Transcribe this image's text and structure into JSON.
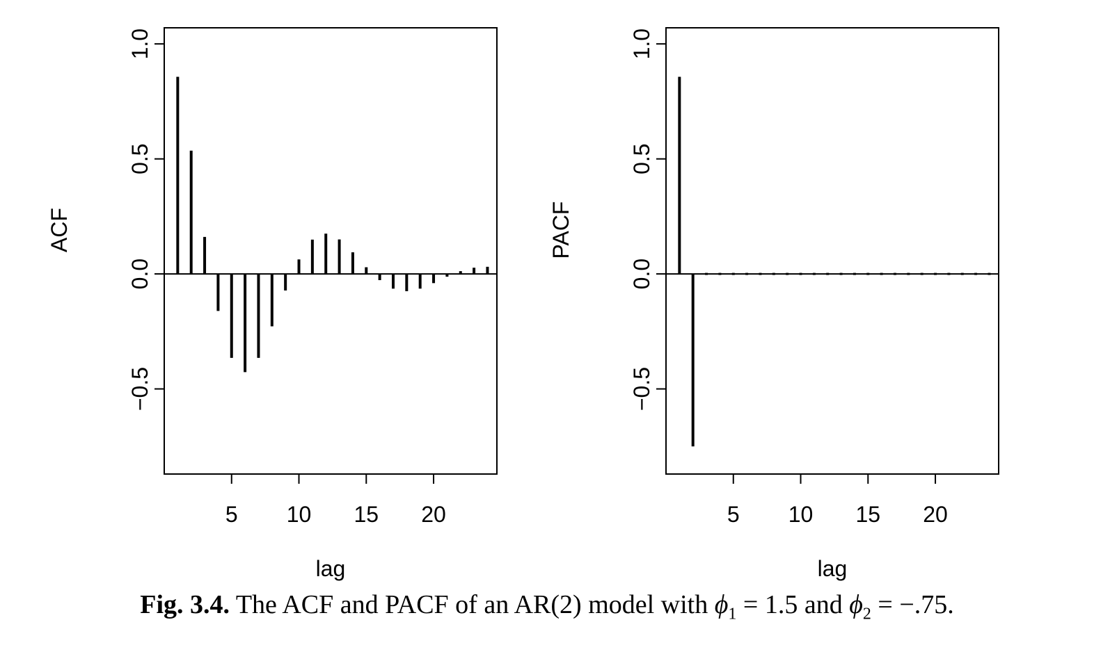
{
  "chart_data": [
    {
      "type": "bar",
      "subtype": "stem",
      "xlabel": "lag",
      "ylabel": "ACF",
      "ylim": [
        -0.87,
        1.07
      ],
      "xlim": [
        0.0,
        24.7
      ],
      "yticks": [
        -0.5,
        0.0,
        0.5,
        1.0
      ],
      "ytick_labels": [
        "−0.5",
        "0.0",
        "0.5",
        "1.0"
      ],
      "xticks": [
        5,
        10,
        15,
        20
      ],
      "xtick_labels": [
        "5",
        "10",
        "15",
        "20"
      ],
      "zero_line": true,
      "x": [
        1,
        2,
        3,
        4,
        5,
        6,
        7,
        8,
        9,
        10,
        11,
        12,
        13,
        14,
        15,
        16,
        17,
        18,
        19,
        20,
        21,
        22,
        23,
        24
      ],
      "values": [
        0.857,
        0.536,
        0.161,
        -0.161,
        -0.365,
        -0.427,
        -0.365,
        -0.228,
        -0.072,
        0.063,
        0.149,
        0.175,
        0.15,
        0.094,
        0.029,
        -0.027,
        -0.064,
        -0.075,
        -0.064,
        -0.04,
        -0.012,
        0.012,
        0.027,
        0.031
      ]
    },
    {
      "type": "bar",
      "subtype": "stem",
      "xlabel": "lag",
      "ylabel": "PACF",
      "ylim": [
        -0.87,
        1.07
      ],
      "xlim": [
        0.0,
        24.7
      ],
      "yticks": [
        -0.5,
        0.0,
        0.5,
        1.0
      ],
      "ytick_labels": [
        "−0.5",
        "0.0",
        "0.5",
        "1.0"
      ],
      "xticks": [
        5,
        10,
        15,
        20
      ],
      "xtick_labels": [
        "5",
        "10",
        "15",
        "20"
      ],
      "zero_line": true,
      "x": [
        1,
        2,
        3,
        4,
        5,
        6,
        7,
        8,
        9,
        10,
        11,
        12,
        13,
        14,
        15,
        16,
        17,
        18,
        19,
        20,
        21,
        22,
        23,
        24
      ],
      "values": [
        0.857,
        -0.75,
        0,
        0,
        0,
        0,
        0,
        0,
        0,
        0,
        0,
        0,
        0,
        0,
        0,
        0,
        0,
        0,
        0,
        0,
        0,
        0,
        0,
        0
      ]
    }
  ],
  "caption": {
    "label": "Fig. 3.4.",
    "text_before": "The ACF and PACF of an AR(2) model with",
    "phi1_symbol": "ϕ",
    "phi1_sub": "1",
    "phi1_rest": "= 1.5 and",
    "phi2_symbol": "ϕ",
    "phi2_sub": "2",
    "phi2_rest": "= −.75."
  }
}
